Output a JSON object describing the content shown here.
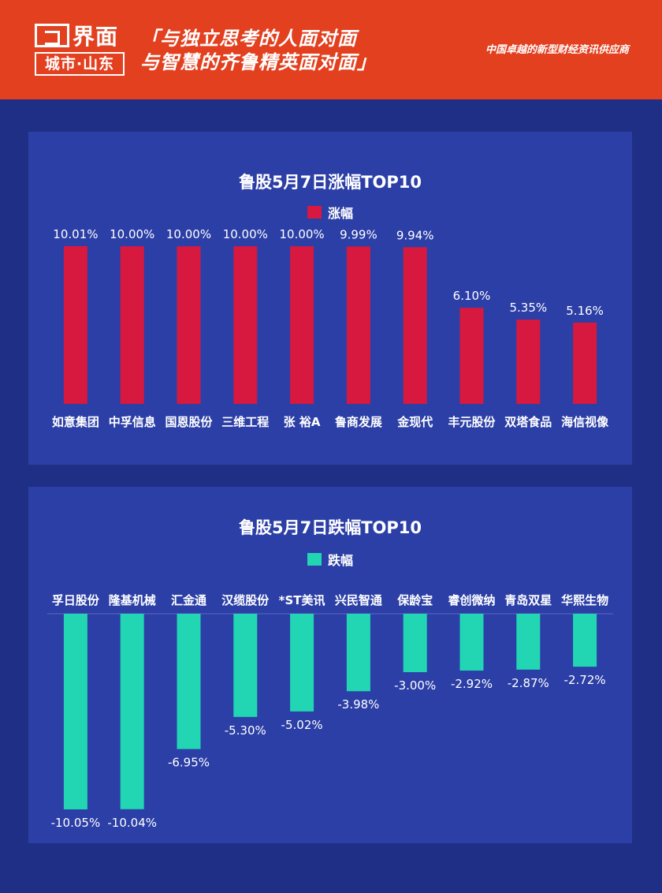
{
  "header": {
    "logo_name": "界面",
    "logo_sub": "城市·山东",
    "slogan_line1": "「与独立思考的人面对面",
    "slogan_line2": "与智慧的齐鲁精英面对面」",
    "tagline": "中国卓越的新型财经资讯供应商"
  },
  "chart_data": [
    {
      "type": "bar",
      "title": "鲁股5月7日涨幅TOP10",
      "color": "#d7183f",
      "categories": [
        "如意集团",
        "中孚信息",
        "国恩股份",
        "三维工程",
        "张 裕A",
        "鲁商发展",
        "金现代",
        "丰元股份",
        "双塔食品",
        "海信视像"
      ],
      "series": [
        {
          "name": "涨幅",
          "values": [
            10.01,
            10.0,
            10.0,
            10.0,
            10.0,
            9.99,
            9.94,
            6.1,
            5.35,
            5.16
          ]
        }
      ],
      "labels": [
        "10.01%",
        "10.00%",
        "10.00%",
        "10.00%",
        "10.00%",
        "9.99%",
        "9.94%",
        "6.10%",
        "5.35%",
        "5.16%"
      ],
      "ylim": [
        0,
        10.01
      ],
      "grid": false,
      "legend": "top-center"
    },
    {
      "type": "bar",
      "title": "鲁股5月7日跌幅TOP10",
      "color": "#22d6b4",
      "categories": [
        "孚日股份",
        "隆基机械",
        "汇金通",
        "汉缆股份",
        "*ST美讯",
        "兴民智通",
        "保龄宝",
        "睿创微纳",
        "青岛双星",
        "华熙生物"
      ],
      "series": [
        {
          "name": "跌幅",
          "values": [
            -10.05,
            -10.04,
            -6.95,
            -5.3,
            -5.02,
            -3.98,
            -3.0,
            -2.92,
            -2.87,
            -2.72
          ]
        }
      ],
      "labels": [
        "-10.05%",
        "-10.04%",
        "-6.95%",
        "-5.30%",
        "-5.02%",
        "-3.98%",
        "-3.00%",
        "-2.92%",
        "-2.87%",
        "-2.72%"
      ],
      "ylim": [
        -10.05,
        0
      ],
      "grid": false,
      "legend": "top-center"
    }
  ]
}
